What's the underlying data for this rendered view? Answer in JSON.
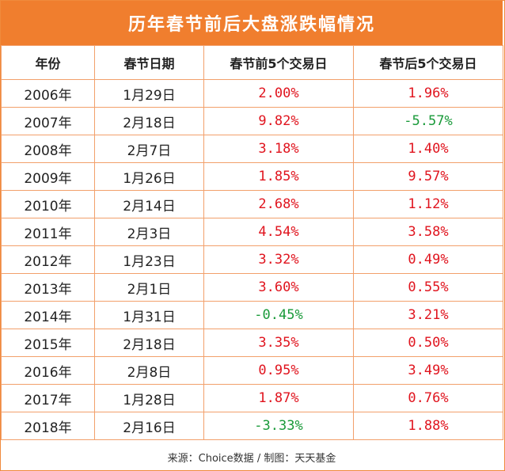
{
  "title": "历年春节前后大盘涨跌幅情况",
  "headers": [
    "年份",
    "春节日期",
    "春节前5个交易日",
    "春节后5个交易日"
  ],
  "rows": [
    {
      "year": "2006年",
      "date": "1月29日",
      "before": "2.00%",
      "after": "1.96%"
    },
    {
      "year": "2007年",
      "date": "2月18日",
      "before": "9.82%",
      "after": "-5.57%"
    },
    {
      "year": "2008年",
      "date": "2月7日",
      "before": "3.18%",
      "after": "1.40%"
    },
    {
      "year": "2009年",
      "date": "1月26日",
      "before": "1.85%",
      "after": "9.57%"
    },
    {
      "year": "2010年",
      "date": "2月14日",
      "before": "2.68%",
      "after": "1.12%"
    },
    {
      "year": "2011年",
      "date": "2月3日",
      "before": "4.54%",
      "after": "3.58%"
    },
    {
      "year": "2012年",
      "date": "1月23日",
      "before": "3.32%",
      "after": "0.49%"
    },
    {
      "year": "2013年",
      "date": "2月1日",
      "before": "3.60%",
      "after": "0.55%"
    },
    {
      "year": "2014年",
      "date": "1月31日",
      "before": "-0.45%",
      "after": "3.21%"
    },
    {
      "year": "2015年",
      "date": "2月18日",
      "before": "3.35%",
      "after": "0.50%"
    },
    {
      "year": "2016年",
      "date": "2月8日",
      "before": "0.95%",
      "after": "3.49%"
    },
    {
      "year": "2017年",
      "date": "1月28日",
      "before": "1.87%",
      "after": "0.76%"
    },
    {
      "year": "2018年",
      "date": "2月16日",
      "before": "-3.33%",
      "after": "1.88%"
    }
  ],
  "source": "来源：Choice数据 / 制图：天天基金",
  "colors": {
    "positive": "#e0141e",
    "negative": "#1a9a3a",
    "title_bg": "#f07e2e",
    "border": "#f2a06b"
  }
}
